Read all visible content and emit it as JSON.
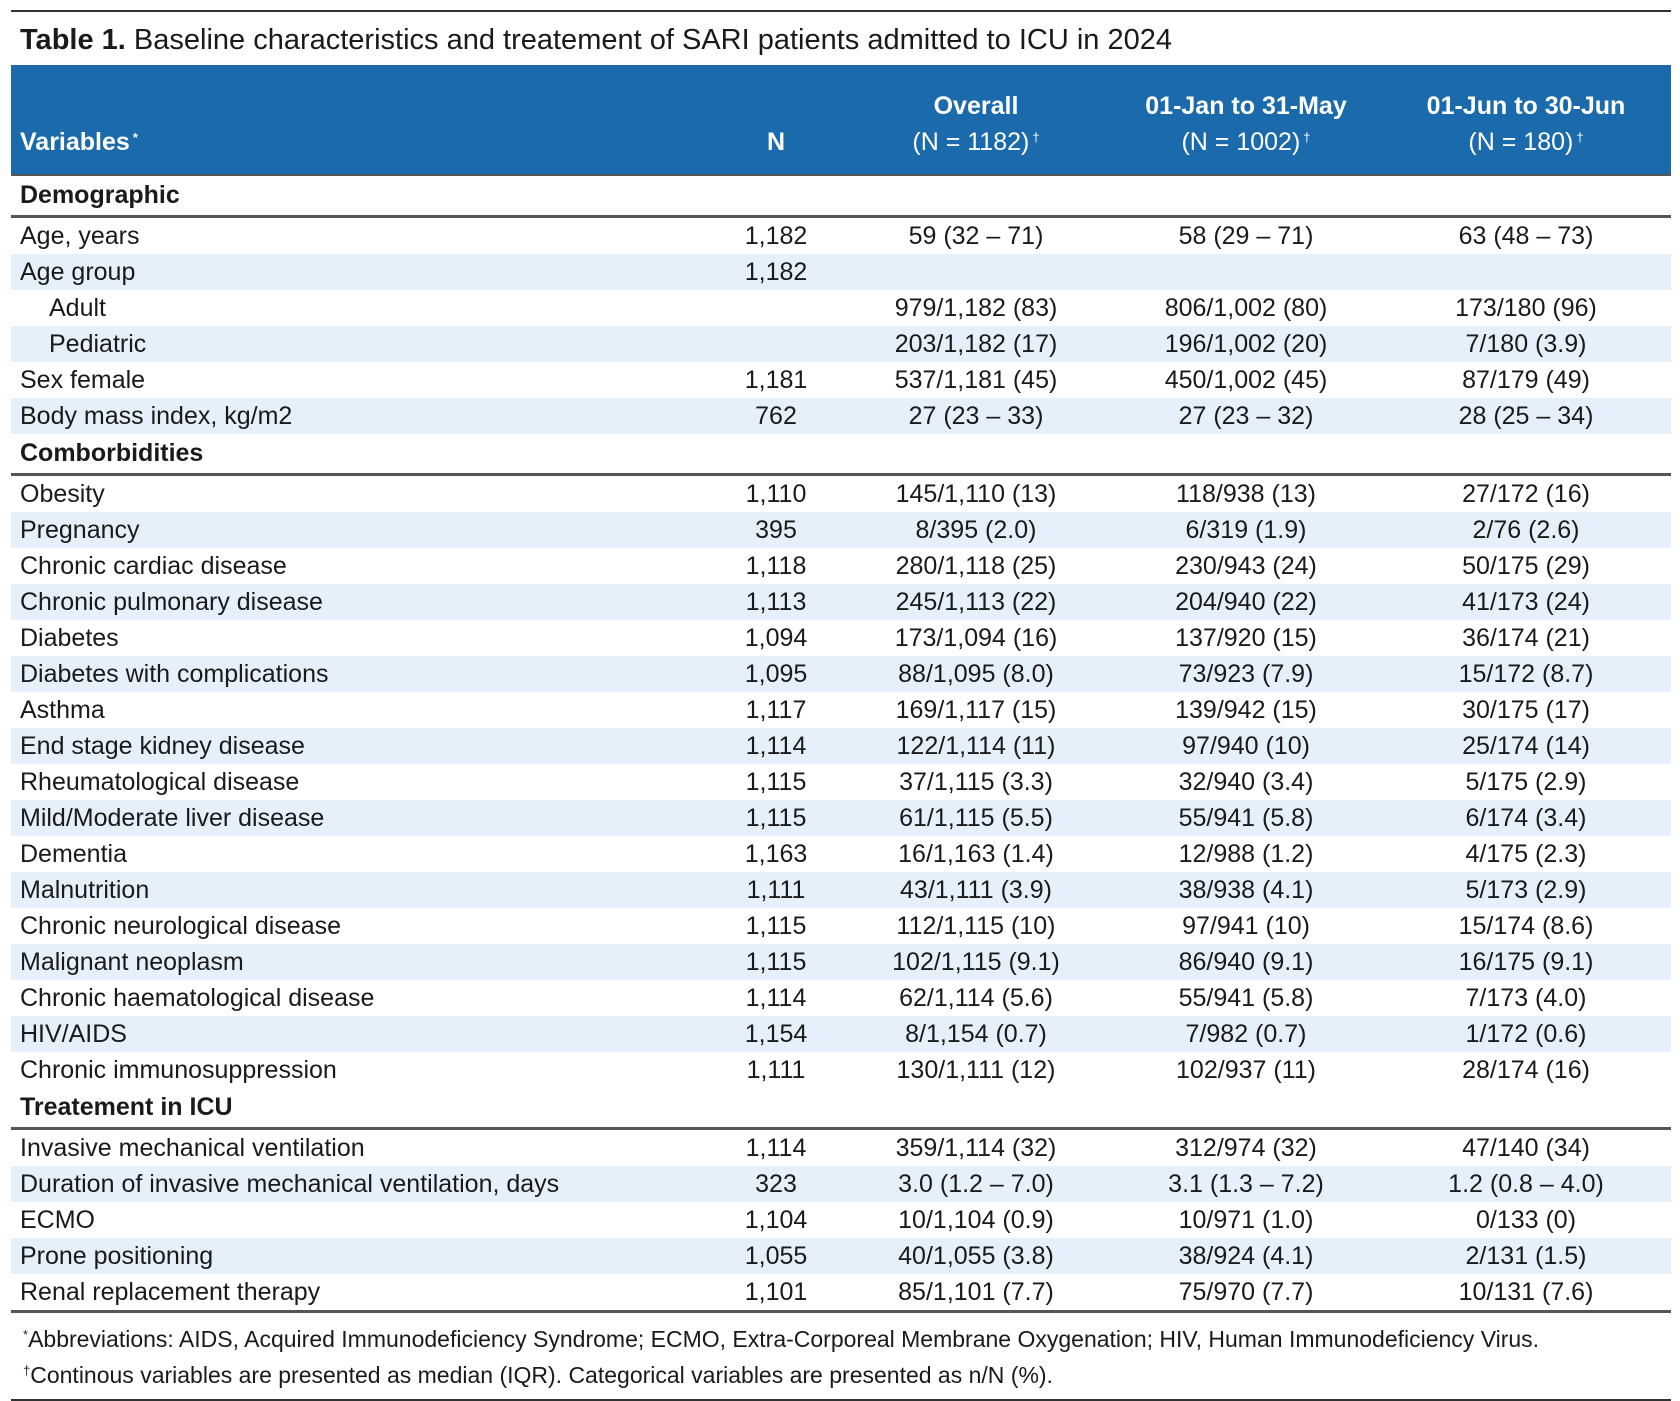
{
  "title": {
    "label": "Table 1.",
    "text": "Baseline characteristics and treatement of SARI patients admitted to ICU in 2024"
  },
  "header": {
    "variables": "Variables",
    "variables_mark": "*",
    "n": "N",
    "overall_title": "Overall",
    "overall_n": "(N = 1182)",
    "period1_title": "01-Jan to 31-May",
    "period1_n": "(N = 1002)",
    "period2_title": "01-Jun to 30-Jun",
    "period2_n": "(N = 180)",
    "count_mark": "†"
  },
  "sections": [
    {
      "name": "Demographic",
      "rows": [
        {
          "variable": "Age, years",
          "n": "1,182",
          "overall": "59 (32 – 71)",
          "p1": "58 (29 – 71)",
          "p2": "63 (48 – 73)"
        },
        {
          "variable": "Age group",
          "n": "1,182",
          "overall": "",
          "p1": "",
          "p2": ""
        },
        {
          "variable": "Adult",
          "n": "",
          "overall": "979/1,182 (83)",
          "p1": "806/1,002 (80)",
          "p2": "173/180 (96)",
          "indent": true
        },
        {
          "variable": "Pediatric",
          "n": "",
          "overall": "203/1,182 (17)",
          "p1": "196/1,002 (20)",
          "p2": "7/180 (3.9)",
          "indent": true
        },
        {
          "variable": "Sex female",
          "n": "1,181",
          "overall": "537/1,181 (45)",
          "p1": "450/1,002 (45)",
          "p2": "87/179 (49)"
        },
        {
          "variable": "Body mass index, kg/m2",
          "n": "762",
          "overall": "27 (23 – 33)",
          "p1": "27 (23 – 32)",
          "p2": "28 (25 – 34)"
        }
      ]
    },
    {
      "name": "Comborbidities",
      "rows": [
        {
          "variable": "Obesity",
          "n": "1,110",
          "overall": "145/1,110 (13)",
          "p1": "118/938 (13)",
          "p2": "27/172 (16)"
        },
        {
          "variable": "Pregnancy",
          "n": "395",
          "overall": "8/395 (2.0)",
          "p1": "6/319 (1.9)",
          "p2": "2/76 (2.6)"
        },
        {
          "variable": "Chronic cardiac disease",
          "n": "1,118",
          "overall": "280/1,118 (25)",
          "p1": "230/943 (24)",
          "p2": "50/175 (29)"
        },
        {
          "variable": "Chronic pulmonary disease",
          "n": "1,113",
          "overall": "245/1,113 (22)",
          "p1": "204/940 (22)",
          "p2": "41/173 (24)"
        },
        {
          "variable": "Diabetes",
          "n": "1,094",
          "overall": "173/1,094 (16)",
          "p1": "137/920 (15)",
          "p2": "36/174 (21)"
        },
        {
          "variable": "Diabetes with complications",
          "n": "1,095",
          "overall": "88/1,095 (8.0)",
          "p1": "73/923 (7.9)",
          "p2": "15/172 (8.7)"
        },
        {
          "variable": "Asthma",
          "n": "1,117",
          "overall": "169/1,117 (15)",
          "p1": "139/942 (15)",
          "p2": "30/175 (17)"
        },
        {
          "variable": "End stage kidney disease",
          "n": "1,114",
          "overall": "122/1,114 (11)",
          "p1": "97/940 (10)",
          "p2": "25/174 (14)"
        },
        {
          "variable": "Rheumatological disease",
          "n": "1,115",
          "overall": "37/1,115 (3.3)",
          "p1": "32/940 (3.4)",
          "p2": "5/175 (2.9)"
        },
        {
          "variable": "Mild/Moderate liver disease",
          "n": "1,115",
          "overall": "61/1,115 (5.5)",
          "p1": "55/941 (5.8)",
          "p2": "6/174 (3.4)"
        },
        {
          "variable": "Dementia",
          "n": "1,163",
          "overall": "16/1,163 (1.4)",
          "p1": "12/988 (1.2)",
          "p2": "4/175 (2.3)"
        },
        {
          "variable": "Malnutrition",
          "n": "1,111",
          "overall": "43/1,111 (3.9)",
          "p1": "38/938 (4.1)",
          "p2": "5/173 (2.9)"
        },
        {
          "variable": "Chronic neurological disease",
          "n": "1,115",
          "overall": "112/1,115 (10)",
          "p1": "97/941 (10)",
          "p2": "15/174 (8.6)"
        },
        {
          "variable": "Malignant neoplasm",
          "n": "1,115",
          "overall": "102/1,115 (9.1)",
          "p1": "86/940 (9.1)",
          "p2": "16/175 (9.1)"
        },
        {
          "variable": "Chronic haematological disease",
          "n": "1,114",
          "overall": "62/1,114 (5.6)",
          "p1": "55/941 (5.8)",
          "p2": "7/173 (4.0)"
        },
        {
          "variable": "HIV/AIDS",
          "n": "1,154",
          "overall": "8/1,154 (0.7)",
          "p1": "7/982 (0.7)",
          "p2": "1/172 (0.6)"
        },
        {
          "variable": "Chronic immunosuppression",
          "n": "1,111",
          "overall": "130/1,111 (12)",
          "p1": "102/937 (11)",
          "p2": "28/174 (16)"
        }
      ]
    },
    {
      "name": "Treatement in ICU",
      "rows": [
        {
          "variable": "Invasive mechanical ventilation",
          "n": "1,114",
          "overall": "359/1,114 (32)",
          "p1": "312/974 (32)",
          "p2": "47/140 (34)"
        },
        {
          "variable": "Duration of invasive mechanical ventilation, days",
          "n": "323",
          "overall": "3.0 (1.2 – 7.0)",
          "p1": "3.1 (1.3 – 7.2)",
          "p2": "1.2 (0.8 – 4.0)"
        },
        {
          "variable": "ECMO",
          "n": "1,104",
          "overall": "10/1,104 (0.9)",
          "p1": "10/971 (1.0)",
          "p2": "0/133 (0)"
        },
        {
          "variable": "Prone positioning",
          "n": "1,055",
          "overall": "40/1,055 (3.8)",
          "p1": "38/924 (4.1)",
          "p2": "2/131 (1.5)"
        },
        {
          "variable": "Renal replacement therapy",
          "n": "1,101",
          "overall": "85/1,101 (7.7)",
          "p1": "75/970 (7.7)",
          "p2": "10/131 (7.6)"
        }
      ]
    }
  ],
  "footnotes": [
    {
      "mark": "*",
      "text": "Abbreviations: AIDS, Acquired Immunodeficiency Syndrome; ECMO, Extra-Corporeal Membrane Oxygenation; HIV, Human Immunodeficiency Virus."
    },
    {
      "mark": "†",
      "text": "Continous variables are presented as median (IQR). Categorical variables are presented as n/N (%)."
    }
  ],
  "colors": {
    "header_bg": "#1a6aac",
    "header_text": "#ffffff",
    "stripe": "#e6f0fa",
    "rule": "#555555"
  }
}
